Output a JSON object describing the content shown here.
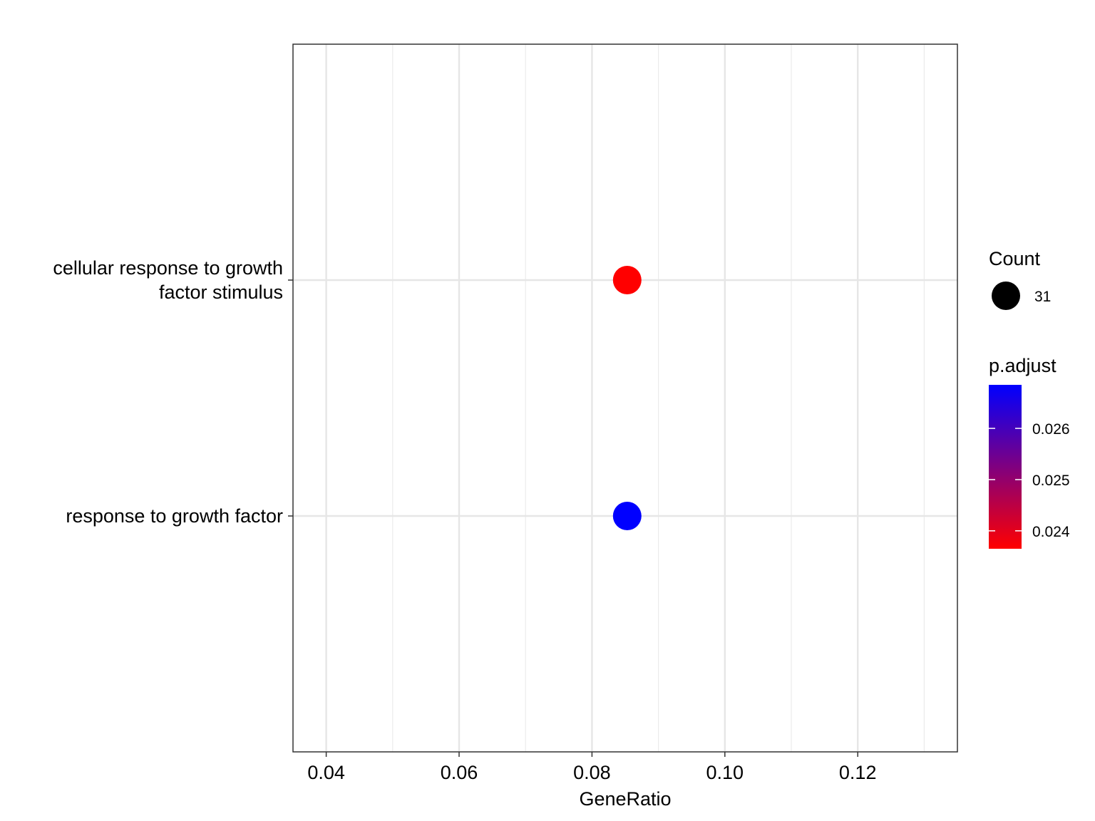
{
  "chart_data": {
    "type": "scatter",
    "xlabel": "GeneRatio",
    "ylabel": "",
    "xlim": [
      0.035,
      0.135
    ],
    "x_ticks": [
      "0.04",
      "0.06",
      "0.08",
      "0.10",
      "0.12"
    ],
    "x_tick_values": [
      0.04,
      0.06,
      0.08,
      0.1,
      0.12
    ],
    "x_minor_values": [
      0.05,
      0.07,
      0.09,
      0.11,
      0.13
    ],
    "categories": [
      [
        "cellular response to growth",
        "factor stimulus"
      ],
      [
        "response to growth factor"
      ]
    ],
    "points": [
      {
        "category_index": 0,
        "x": 0.0853,
        "count": 31,
        "p_adjust": 0.02365,
        "color": "#ff0000"
      },
      {
        "category_index": 1,
        "x": 0.0853,
        "count": 31,
        "p_adjust": 0.02685,
        "color": "#0000ff"
      }
    ],
    "grid": true,
    "legend": {
      "placement": "right",
      "size": {
        "title": "Count",
        "entries": [
          {
            "value": 31,
            "label": "31",
            "color": "#000000"
          }
        ]
      },
      "color": {
        "title": "p.adjust",
        "range": [
          0.02365,
          0.02685
        ],
        "low_color": "#ff0000",
        "high_color": "#0000ff",
        "ticks": [
          "0.024",
          "0.025",
          "0.026"
        ],
        "tick_values": [
          0.024,
          0.025,
          0.026
        ]
      }
    }
  }
}
